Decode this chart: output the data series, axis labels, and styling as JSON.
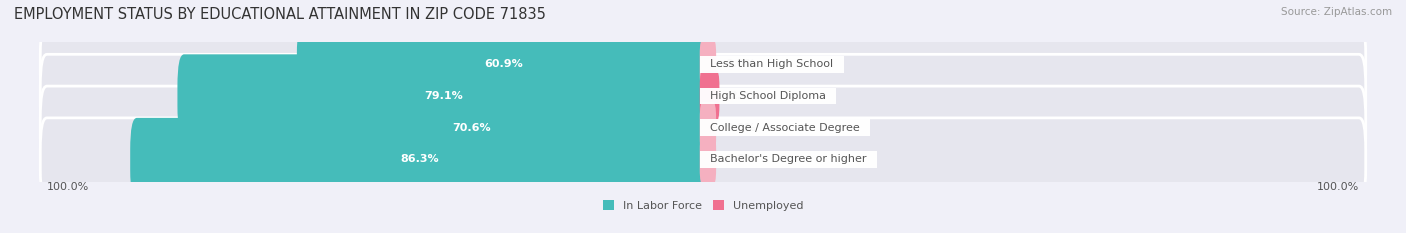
{
  "title": "EMPLOYMENT STATUS BY EDUCATIONAL ATTAINMENT IN ZIP CODE 71835",
  "source": "Source: ZipAtlas.com",
  "categories": [
    "Less than High School",
    "High School Diploma",
    "College / Associate Degree",
    "Bachelor's Degree or higher"
  ],
  "labor_force": [
    60.9,
    79.1,
    70.6,
    86.3
  ],
  "unemployed": [
    0.0,
    2.0,
    0.0,
    0.0
  ],
  "labor_force_color": "#45BCBA",
  "unemployed_color": "#F07090",
  "unemployed_color_light": "#F5B0C0",
  "bar_bg_color": "#E6E6EE",
  "bar_height": 0.62,
  "left_label": "100.0%",
  "right_label": "100.0%",
  "legend_labor": "In Labor Force",
  "legend_unemployed": "Unemployed",
  "title_fontsize": 10.5,
  "label_fontsize": 8,
  "tick_fontsize": 8,
  "source_fontsize": 7.5,
  "figsize": [
    14.06,
    2.33
  ],
  "dpi": 100,
  "label_color": "#555555",
  "title_color": "#333333",
  "bg_color": "#F0F0F8"
}
